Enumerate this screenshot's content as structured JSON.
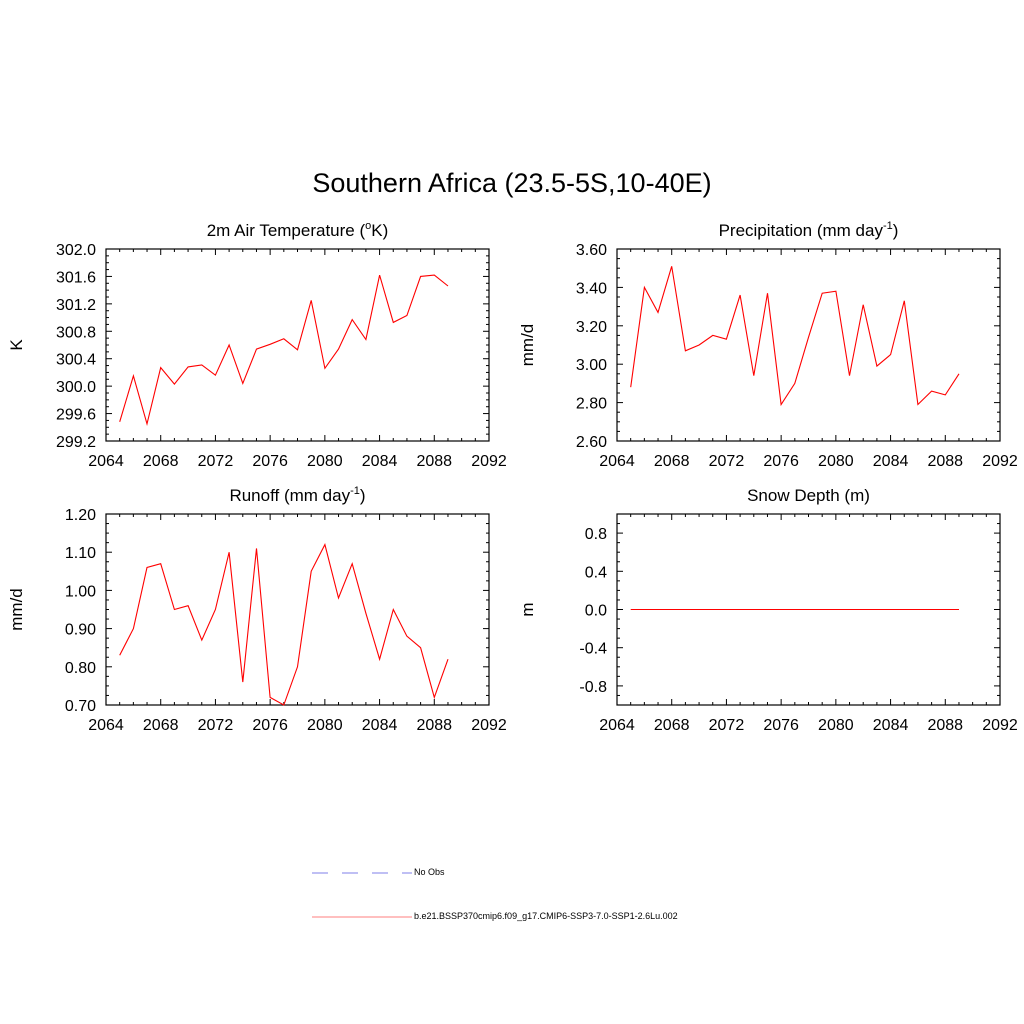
{
  "title": "Southern Africa (23.5-5S,10-40E)",
  "colors": {
    "series": "#ff0000",
    "obs": "#9999ee",
    "axis": "#000000"
  },
  "legend": {
    "entries": [
      {
        "label": "No Obs",
        "style": "dashed",
        "color": "#9999ee"
      },
      {
        "label": "b.e21.BSSP370cmip6.f09_g17.CMIP6-SSP3-7.0-SSP1-2.6Lu.002",
        "style": "solid",
        "color": "#ff9999"
      }
    ]
  },
  "chart_data": [
    {
      "type": "line",
      "title": "2m Air Temperature (",
      "title_sup": "o",
      "title_after": "K)",
      "ylabel": "K",
      "xlim": [
        2064,
        2092
      ],
      "ylim": [
        299.2,
        302.0
      ],
      "xticks": [
        "2064",
        "2068",
        "2072",
        "2076",
        "2080",
        "2084",
        "2088",
        "2092"
      ],
      "yticks": [
        "299.2",
        "299.6",
        "300.0",
        "300.4",
        "300.8",
        "301.2",
        "301.6",
        "302.0"
      ],
      "x": [
        2065,
        2066,
        2067,
        2068,
        2069,
        2070,
        2071,
        2072,
        2073,
        2074,
        2075,
        2076,
        2077,
        2078,
        2079,
        2080,
        2081,
        2082,
        2083,
        2084,
        2085,
        2086,
        2087,
        2088,
        2089
      ],
      "series": [
        {
          "values": [
            299.48,
            300.15,
            299.45,
            300.27,
            300.03,
            300.28,
            300.31,
            300.16,
            300.6,
            300.04,
            300.54,
            300.61,
            300.69,
            300.53,
            301.25,
            300.26,
            300.54,
            300.97,
            300.68,
            301.62,
            300.93,
            301.03,
            301.6,
            301.62,
            301.46
          ]
        }
      ]
    },
    {
      "type": "line",
      "title": "Precipitation (mm day",
      "title_sup": "-1",
      "title_after": ")",
      "ylabel": "mm/d",
      "xlim": [
        2064,
        2092
      ],
      "ylim": [
        2.6,
        3.6
      ],
      "xticks": [
        "2064",
        "2068",
        "2072",
        "2076",
        "2080",
        "2084",
        "2088",
        "2092"
      ],
      "yticks": [
        "2.60",
        "2.80",
        "3.00",
        "3.20",
        "3.40",
        "3.60"
      ],
      "x": [
        2065,
        2066,
        2067,
        2068,
        2069,
        2070,
        2071,
        2072,
        2073,
        2074,
        2075,
        2076,
        2077,
        2078,
        2079,
        2080,
        2081,
        2082,
        2083,
        2084,
        2085,
        2086,
        2087,
        2088,
        2089
      ],
      "series": [
        {
          "values": [
            2.88,
            3.4,
            3.27,
            3.51,
            3.07,
            3.1,
            3.15,
            3.13,
            3.36,
            2.94,
            3.37,
            2.79,
            2.9,
            3.14,
            3.37,
            3.38,
            2.94,
            3.31,
            2.99,
            3.05,
            3.33,
            2.79,
            2.86,
            2.84,
            2.95
          ]
        }
      ]
    },
    {
      "type": "line",
      "title": "Runoff (mm day",
      "title_sup": "-1",
      "title_after": ")",
      "ylabel": "mm/d",
      "xlim": [
        2064,
        2092
      ],
      "ylim": [
        0.7,
        1.2
      ],
      "xticks": [
        "2064",
        "2068",
        "2072",
        "2076",
        "2080",
        "2084",
        "2088",
        "2092"
      ],
      "yticks": [
        "0.70",
        "0.80",
        "0.90",
        "1.00",
        "1.10",
        "1.20"
      ],
      "x": [
        2065,
        2066,
        2067,
        2068,
        2069,
        2070,
        2071,
        2072,
        2073,
        2074,
        2075,
        2076,
        2077,
        2078,
        2079,
        2080,
        2081,
        2082,
        2083,
        2084,
        2085,
        2086,
        2087,
        2088,
        2089
      ],
      "series": [
        {
          "values": [
            0.83,
            0.9,
            1.06,
            1.07,
            0.95,
            0.96,
            0.87,
            0.95,
            1.1,
            0.76,
            1.11,
            0.72,
            0.7,
            0.8,
            1.05,
            1.12,
            0.98,
            1.07,
            0.94,
            0.82,
            0.95,
            0.88,
            0.85,
            0.72,
            0.82
          ]
        }
      ]
    },
    {
      "type": "line",
      "title": "Snow Depth (m)",
      "title_sup": "",
      "title_after": "",
      "ylabel": "m",
      "xlim": [
        2064,
        2092
      ],
      "ylim": [
        -1.0,
        1.0
      ],
      "xticks": [
        "2064",
        "2068",
        "2072",
        "2076",
        "2080",
        "2084",
        "2088",
        "2092"
      ],
      "yticks": [
        "-0.8",
        "-0.4",
        "0.0",
        "0.4",
        "0.8"
      ],
      "x": [
        2065,
        2066,
        2067,
        2068,
        2069,
        2070,
        2071,
        2072,
        2073,
        2074,
        2075,
        2076,
        2077,
        2078,
        2079,
        2080,
        2081,
        2082,
        2083,
        2084,
        2085,
        2086,
        2087,
        2088,
        2089
      ],
      "series": [
        {
          "values": [
            0,
            0,
            0,
            0,
            0,
            0,
            0,
            0,
            0,
            0,
            0,
            0,
            0,
            0,
            0,
            0,
            0,
            0,
            0,
            0,
            0,
            0,
            0,
            0,
            0
          ]
        }
      ]
    }
  ]
}
